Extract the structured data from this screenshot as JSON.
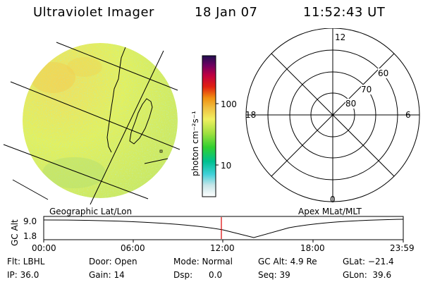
{
  "header": {
    "title": "Ultraviolet Imager",
    "date": "18 Jan 07",
    "time": "11:52:43 UT"
  },
  "colorbar": {
    "unit": "photon cm⁻²s⁻¹",
    "tick_100": "100",
    "tick_10": "10",
    "colors": [
      "#ffffff",
      "#c8e6e8",
      "#40d0d8",
      "#00c090",
      "#30d030",
      "#a0e040",
      "#f0f060",
      "#f0c040",
      "#f09010",
      "#e02010",
      "#c00040",
      "#700060",
      "#201050"
    ]
  },
  "polar": {
    "labels": {
      "top": "12",
      "bottom": "0",
      "left": "18",
      "right": "6"
    },
    "rings": [
      "60",
      "70",
      "80"
    ]
  },
  "timeline": {
    "left_label": "Geographic Lat/Lon",
    "right_label": "Apex MLat/MLT",
    "y_axis_label": "GC Alt",
    "y_ticks": [
      "9.0",
      "1.8"
    ],
    "x_ticks": [
      "00:00",
      "06:00",
      "12:00",
      "18:00",
      "23:59"
    ],
    "current_marker_color": "#dd0000"
  },
  "info": {
    "flt": "Flt: LBHL",
    "ip": "IP: 36.0",
    "door": "Door: Open",
    "gain": "Gain: 14",
    "mode": "Mode: Normal",
    "dsp": "Dsp:      0.0",
    "gcalt": "GC Alt: 4.9 Re",
    "seq": "Seq: 39",
    "glat": "GLat: −21.4",
    "glon": "GLon:  39.6"
  }
}
